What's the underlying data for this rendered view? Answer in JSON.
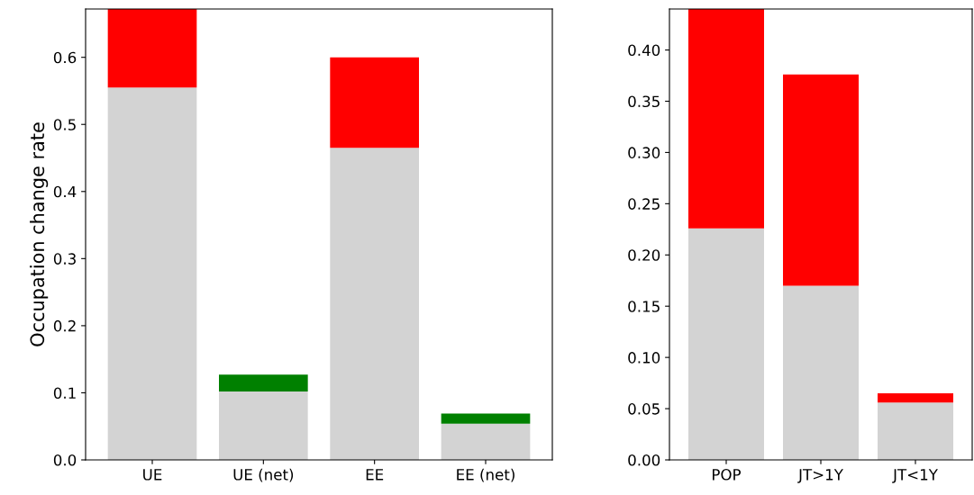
{
  "chart_data": [
    {
      "type": "bar",
      "stacked": true,
      "ylabel": "Occupation change rate",
      "categories": [
        "UE",
        "UE (net)",
        "EE",
        "EE (net)"
      ],
      "ylim": [
        0,
        0.672
      ],
      "yticks": [
        {
          "value": 0.0,
          "label": "0.0"
        },
        0.1,
        0.2,
        0.3,
        0.4,
        0.5,
        0.6
      ],
      "grid": false,
      "legend": false,
      "series": [
        {
          "color": "#d3d3d3",
          "values": [
            0.555,
            0.102,
            0.465,
            0.054
          ]
        },
        {
          "colors": [
            "#ff0000",
            "#008000",
            "#ff0000",
            "#008000"
          ],
          "values": [
            0.117,
            0.025,
            0.135,
            0.015
          ]
        }
      ]
    },
    {
      "type": "bar",
      "stacked": true,
      "categories": [
        "POP",
        "JT>1Y",
        "JT<1Y"
      ],
      "ylim": [
        0,
        0.44
      ],
      "yticks": [
        {
          "value": 0.0,
          "label": "0.00"
        },
        {
          "value": 0.05,
          "label": "0.05"
        },
        {
          "value": 0.1,
          "label": "0.10"
        },
        {
          "value": 0.15,
          "label": "0.15"
        },
        {
          "value": 0.2,
          "label": "0.20"
        },
        {
          "value": 0.25,
          "label": "0.25"
        },
        {
          "value": 0.3,
          "label": "0.30"
        },
        {
          "value": 0.35,
          "label": "0.35"
        },
        {
          "value": 0.4,
          "label": "0.40"
        }
      ],
      "grid": false,
      "legend": false,
      "series": [
        {
          "color": "#d3d3d3",
          "values": [
            0.226,
            0.17,
            0.056
          ]
        },
        {
          "color": "#ff0000",
          "values": [
            0.214,
            0.206,
            0.009
          ]
        }
      ]
    }
  ]
}
